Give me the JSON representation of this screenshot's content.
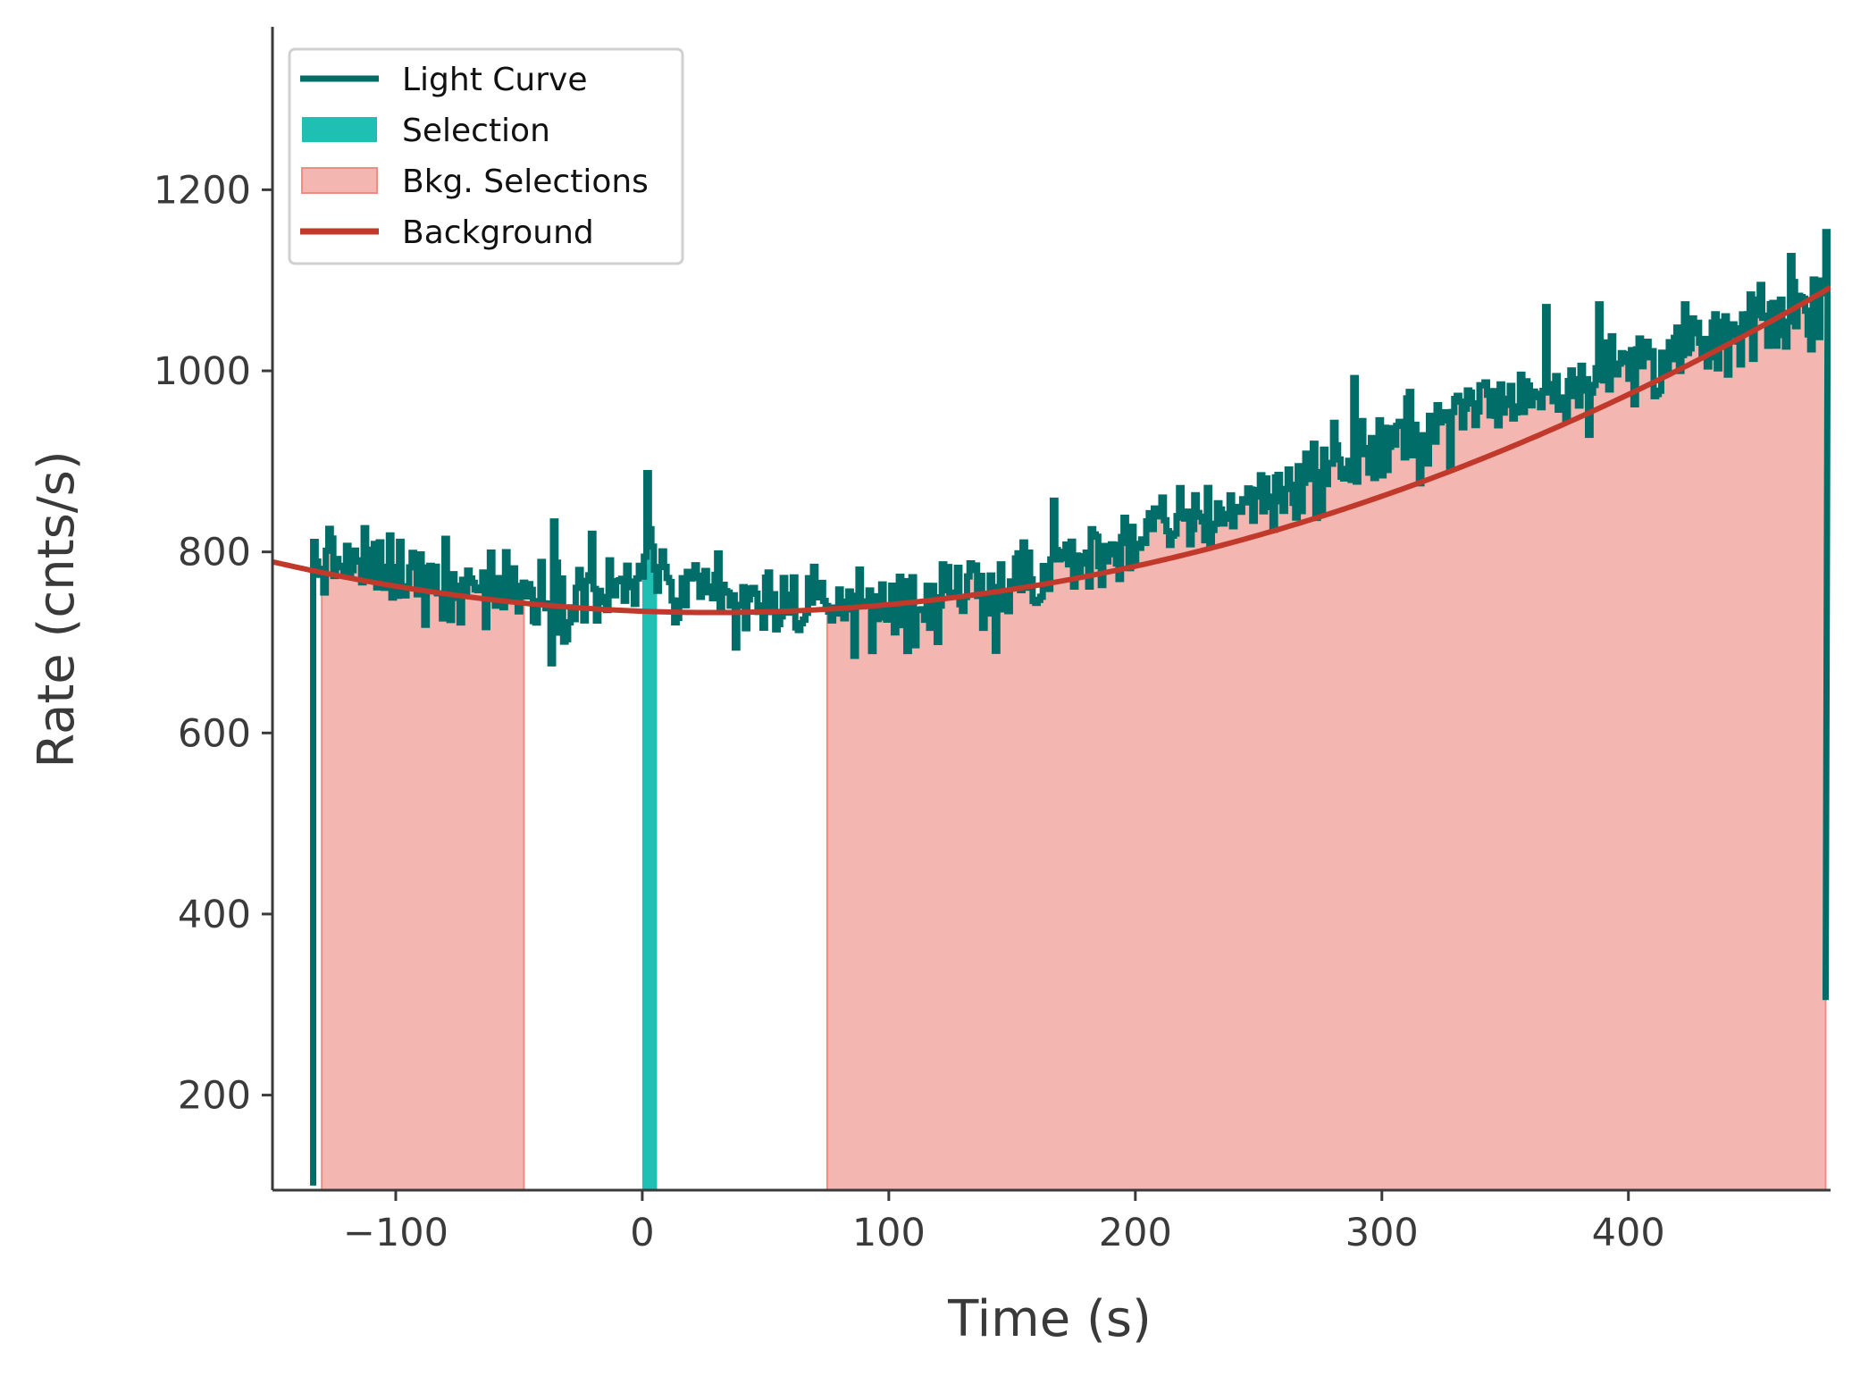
{
  "chart_data": {
    "type": "line",
    "xlabel": "Time (s)",
    "ylabel": "Rate (cnts/s)",
    "xlim": [
      -150,
      482
    ],
    "ylim": [
      95,
      1380
    ],
    "x_ticks": [
      -100,
      0,
      100,
      200,
      300,
      400
    ],
    "x_tick_labels": [
      "−100",
      "0",
      "100",
      "200",
      "300",
      "400"
    ],
    "y_ticks": [
      200,
      400,
      600,
      800,
      1000,
      1200
    ],
    "y_tick_labels": [
      "200",
      "400",
      "600",
      "800",
      "1000",
      "1200"
    ],
    "grid": false,
    "legend": {
      "position": "top-left",
      "entries": [
        {
          "label": "Light Curve",
          "kind": "line",
          "color": "#006d68"
        },
        {
          "label": "Selection",
          "kind": "patch",
          "color": "#20bfb4"
        },
        {
          "label": "Bkg. Selections",
          "kind": "patch",
          "color": "#f4b6b1"
        },
        {
          "label": "Background",
          "kind": "line",
          "color": "#c0392b"
        }
      ]
    },
    "light_curve": {
      "name": "Light Curve",
      "color": "#006d68",
      "bin_width": 1.024,
      "t_start": -133.5,
      "t_end": 480.0,
      "trend_knots": {
        "t": [
          -130,
          -90,
          -50,
          0,
          40,
          60,
          80,
          100,
          120,
          150,
          200,
          250,
          300,
          350,
          400,
          450,
          480
        ],
        "rate": [
          790,
          775,
          755,
          752,
          746,
          745,
          740,
          738,
          742,
          758,
          815,
          860,
          915,
          970,
          1005,
          1045,
          1080
        ]
      },
      "noise_amplitude": 26,
      "spike_fraction": 0.06,
      "spike_amplitude": 80,
      "peak_near_zero": {
        "t": 1.5,
        "rate": 887
      },
      "end_drop_rate": 305,
      "start_rate": 100
    },
    "selection": {
      "name": "Selection",
      "color": "#20bfb4",
      "intervals": [
        [
          0,
          6
        ]
      ]
    },
    "bkg_selections": {
      "name": "Bkg. Selections",
      "color": "#f4b6b1",
      "edge_color": "#f08c84",
      "intervals": [
        [
          -130,
          -48
        ],
        [
          75,
          480
        ]
      ]
    },
    "background": {
      "name": "Background",
      "color": "#c0392b",
      "polynomial": {
        "vertex_t": 29,
        "vertex_rate": 733,
        "curvature": 0.00175
      },
      "x_range": [
        -150,
        482
      ]
    }
  }
}
